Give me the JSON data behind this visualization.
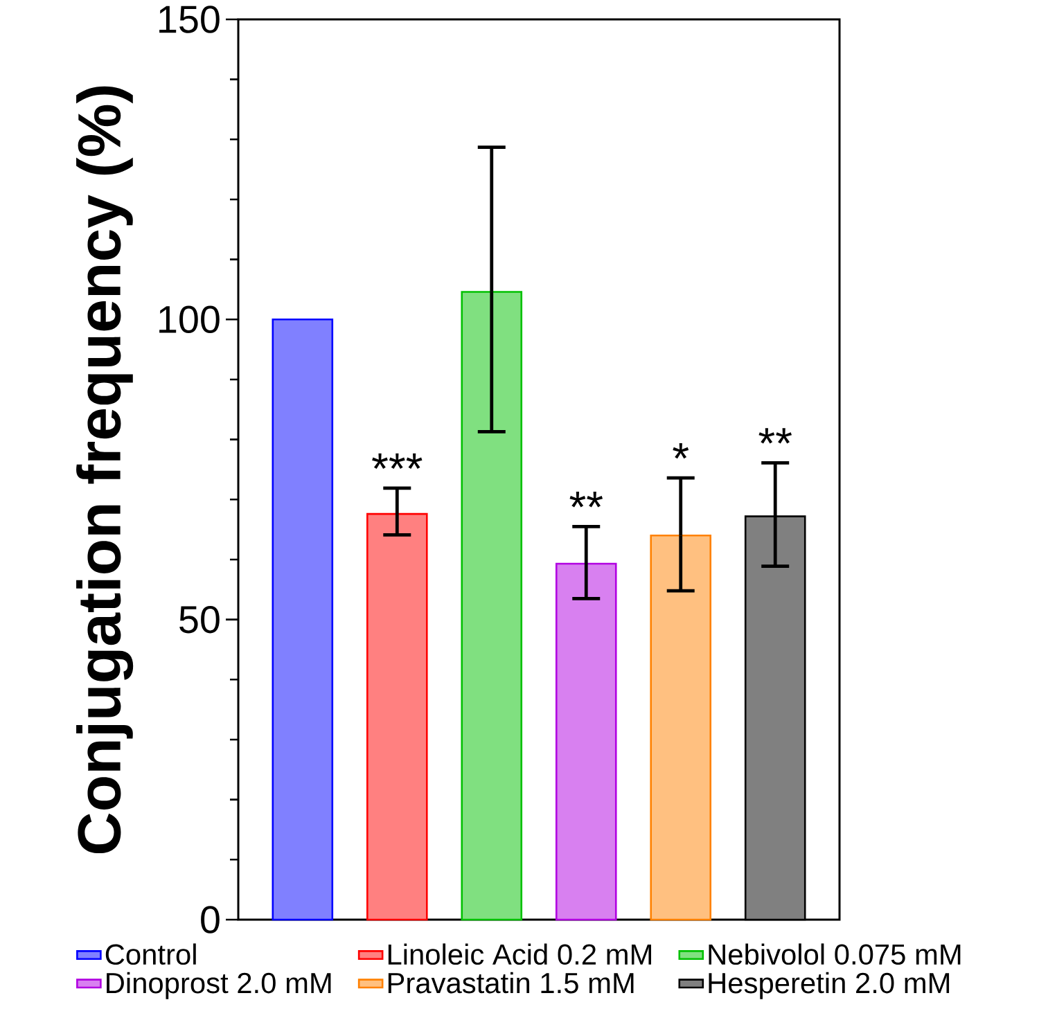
{
  "chart_data": {
    "type": "bar",
    "ylabel": "Conjugation frequency (%)",
    "stacked": true,
    "categories": [
      null,
      null,
      null,
      null,
      null,
      null
    ],
    "series": [
      {
        "name": "Control",
        "color": "#8080ff",
        "values": [
          100,
          null,
          null,
          null,
          null,
          null
        ]
      },
      {
        "name": "Linoleic Acid 0.2 mM",
        "color": "#ff8080",
        "values": [
          null,
          67.6,
          null,
          null,
          null,
          null
        ],
        "errors": [
          null,
          [
            64.1,
            71.9
          ],
          null,
          null,
          null,
          null
        ],
        "value_labels": [
          null,
          "***",
          null,
          null,
          null,
          null
        ]
      },
      {
        "name": "Nebivolol 0.075 mM",
        "color": "#80e080",
        "values": [
          null,
          null,
          104.6,
          null,
          null,
          null
        ],
        "errors": [
          null,
          null,
          [
            81.3,
            128.7
          ],
          null,
          null,
          null
        ]
      },
      {
        "name": "Dinoprost 2.0 mM",
        "color": "#d880f0",
        "values": [
          null,
          null,
          null,
          59.3,
          null,
          null
        ],
        "errors": [
          null,
          null,
          null,
          [
            53.5,
            65.5
          ],
          null,
          null
        ],
        "value_labels": [
          null,
          null,
          null,
          "**",
          null,
          null
        ]
      },
      {
        "name": "Pravastatin 1.5 mM",
        "color": "#ffc080",
        "values": [
          null,
          null,
          null,
          null,
          64.0,
          null
        ],
        "errors": [
          null,
          null,
          null,
          null,
          [
            54.8,
            73.6
          ],
          null
        ],
        "value_labels": [
          null,
          null,
          null,
          null,
          "*",
          null
        ]
      },
      {
        "name": "Hesperetin 2.0 mM",
        "color": "#808080",
        "values": [
          null,
          null,
          null,
          null,
          null,
          67.2
        ],
        "errors": [
          null,
          null,
          null,
          null,
          null,
          [
            58.9,
            76.1
          ]
        ],
        "value_labels": [
          null,
          null,
          null,
          null,
          null,
          "**"
        ]
      }
    ],
    "ylim": [
      0,
      150
    ],
    "yticks": [
      0,
      {
        "value": 10,
        "label": null
      },
      {
        "value": 20,
        "label": null
      },
      {
        "value": 30,
        "label": null
      },
      {
        "value": 40,
        "label": null
      },
      50,
      {
        "value": 60,
        "label": null
      },
      {
        "value": 70,
        "label": null
      },
      {
        "value": 80,
        "label": null
      },
      {
        "value": 90,
        "label": null
      },
      100,
      {
        "value": 110,
        "label": null
      },
      {
        "value": 120,
        "label": null
      },
      {
        "value": 130,
        "label": null
      },
      {
        "value": 140,
        "label": null
      },
      150
    ],
    "legend": "bottom",
    "grid": false
  }
}
